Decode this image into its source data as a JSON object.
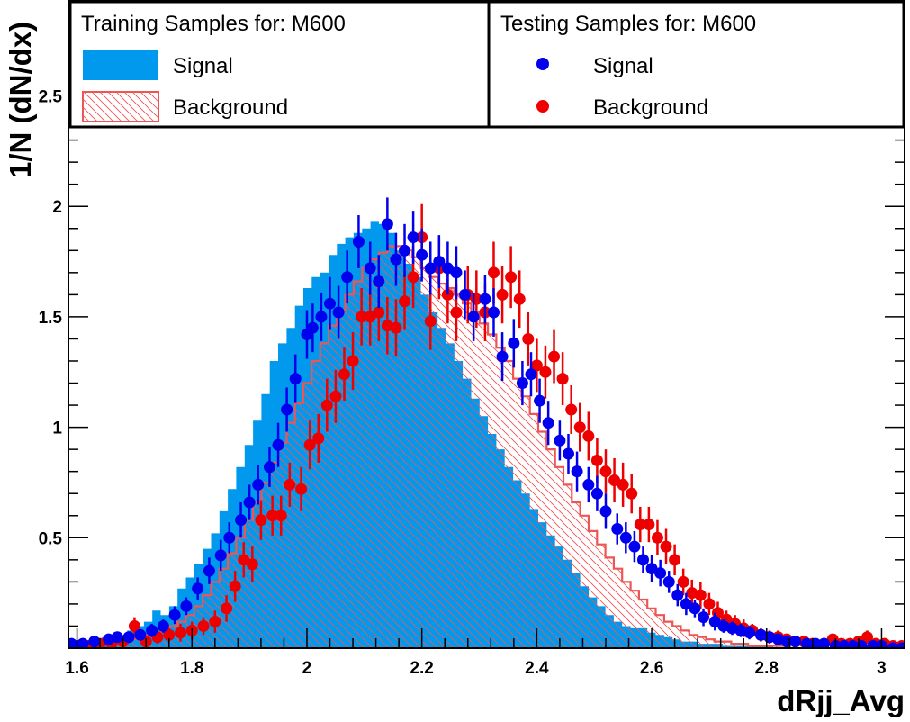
{
  "chart_data": {
    "type": "histogram",
    "xlabel": "dRjj_Avg",
    "ylabel": "1/N (dN/dx)",
    "xlim": [
      1.585,
      3.04
    ],
    "ylim": [
      0.0,
      2.93
    ],
    "x_ticks": [
      1.6,
      1.8,
      2.0,
      2.2,
      2.4,
      2.6,
      2.8,
      3.0
    ],
    "x_tick_labels": [
      "1.6",
      "1.8",
      "2",
      "2.2",
      "2.4",
      "2.6",
      "2.8",
      "3"
    ],
    "y_ticks": [
      0.5,
      1.0,
      1.5,
      2.0,
      2.5
    ],
    "y_tick_labels": [
      "0.5",
      "1",
      "1.5",
      "2",
      "2.5"
    ],
    "bin_edges_start": 1.585,
    "bin_width": 0.0146,
    "training_signal": [
      0.01,
      0.02,
      0.03,
      0.04,
      0.05,
      0.05,
      0.06,
      0.08,
      0.1,
      0.12,
      0.17,
      0.15,
      0.19,
      0.27,
      0.32,
      0.38,
      0.45,
      0.52,
      0.62,
      0.72,
      0.82,
      0.92,
      1.03,
      1.15,
      1.3,
      1.38,
      1.45,
      1.55,
      1.63,
      1.68,
      1.7,
      1.78,
      1.83,
      1.86,
      1.88,
      1.9,
      1.93,
      1.92,
      1.88,
      1.8,
      1.74,
      1.68,
      1.6,
      1.52,
      1.45,
      1.38,
      1.3,
      1.22,
      1.13,
      1.05,
      0.97,
      0.9,
      0.82,
      0.76,
      0.7,
      0.63,
      0.57,
      0.51,
      0.46,
      0.4,
      0.34,
      0.28,
      0.23,
      0.19,
      0.15,
      0.12,
      0.1,
      0.09,
      0.09,
      0.07,
      0.06,
      0.05,
      0.04,
      0.03,
      0.03,
      0.02,
      0.02,
      0.02,
      0.01,
      0.01,
      0.01,
      0.01,
      0.01,
      0.01,
      0.0,
      0.0,
      0.0,
      0.0,
      0.0,
      0.0
    ],
    "training_background": [
      0.01,
      0.01,
      0.01,
      0.02,
      0.02,
      0.03,
      0.03,
      0.04,
      0.05,
      0.06,
      0.07,
      0.08,
      0.1,
      0.12,
      0.15,
      0.19,
      0.24,
      0.3,
      0.36,
      0.43,
      0.5,
      0.58,
      0.66,
      0.75,
      0.84,
      0.93,
      1.02,
      1.11,
      1.2,
      1.3,
      1.38,
      1.46,
      1.53,
      1.6,
      1.66,
      1.72,
      1.76,
      1.79,
      1.82,
      1.82,
      1.8,
      1.77,
      1.72,
      1.68,
      1.65,
      1.63,
      1.6,
      1.56,
      1.52,
      1.47,
      1.42,
      1.36,
      1.3,
      1.22,
      1.14,
      1.06,
      0.98,
      0.9,
      0.82,
      0.74,
      0.66,
      0.6,
      0.53,
      0.47,
      0.41,
      0.36,
      0.3,
      0.26,
      0.22,
      0.18,
      0.15,
      0.12,
      0.1,
      0.08,
      0.06,
      0.05,
      0.04,
      0.03,
      0.03,
      0.02,
      0.02,
      0.01,
      0.01,
      0.01,
      0.01,
      0.01,
      0.0,
      0.0,
      0.0,
      0.0
    ],
    "testing_signal": {
      "x": [
        1.59,
        1.61,
        1.63,
        1.655,
        1.67,
        1.69,
        1.71,
        1.73,
        1.75,
        1.77,
        1.79,
        1.81,
        1.83,
        1.85,
        1.865,
        1.885,
        1.9,
        1.915,
        1.935,
        1.95,
        1.965,
        1.98,
        2.0,
        2.01,
        2.025,
        2.04,
        2.055,
        2.07,
        2.09,
        2.11,
        2.125,
        2.14,
        2.155,
        2.17,
        2.185,
        2.2,
        2.215,
        2.23,
        2.245,
        2.26,
        2.275,
        2.29,
        2.31,
        2.325,
        2.34,
        2.36,
        2.375,
        2.39,
        2.405,
        2.42,
        2.44,
        2.455,
        2.47,
        2.49,
        2.505,
        2.52,
        2.54,
        2.555,
        2.57,
        2.585,
        2.6,
        2.615,
        2.63,
        2.645,
        2.66,
        2.675,
        2.69,
        2.71,
        2.725,
        2.74,
        2.755,
        2.77,
        2.79,
        2.805,
        2.82,
        2.835,
        2.85,
        2.87,
        2.885,
        2.9,
        2.92,
        2.935,
        2.95,
        2.965,
        2.985,
        3.0,
        3.02,
        3.035
      ],
      "y": [
        0.02,
        0.02,
        0.03,
        0.04,
        0.05,
        0.05,
        0.06,
        0.08,
        0.1,
        0.15,
        0.19,
        0.27,
        0.35,
        0.42,
        0.5,
        0.58,
        0.66,
        0.74,
        0.82,
        0.92,
        1.08,
        1.22,
        1.42,
        1.45,
        1.5,
        1.56,
        1.52,
        1.68,
        1.84,
        1.72,
        1.66,
        1.92,
        1.76,
        1.8,
        1.86,
        1.78,
        1.72,
        1.75,
        1.72,
        1.7,
        1.6,
        1.5,
        1.58,
        1.52,
        1.32,
        1.38,
        1.2,
        1.24,
        1.12,
        1.02,
        0.94,
        0.88,
        0.8,
        0.74,
        0.7,
        0.62,
        0.54,
        0.5,
        0.46,
        0.4,
        0.36,
        0.34,
        0.3,
        0.24,
        0.2,
        0.18,
        0.14,
        0.12,
        0.1,
        0.09,
        0.08,
        0.07,
        0.06,
        0.05,
        0.04,
        0.03,
        0.03,
        0.02,
        0.02,
        0.02,
        0.01,
        0.01,
        0.01,
        0.01,
        0.01,
        0.01,
        0.0,
        0.0
      ],
      "err": [
        0.01,
        0.01,
        0.01,
        0.02,
        0.02,
        0.02,
        0.02,
        0.03,
        0.03,
        0.04,
        0.04,
        0.05,
        0.06,
        0.07,
        0.07,
        0.08,
        0.08,
        0.09,
        0.09,
        0.1,
        0.1,
        0.11,
        0.11,
        0.11,
        0.11,
        0.12,
        0.12,
        0.12,
        0.12,
        0.12,
        0.12,
        0.12,
        0.12,
        0.12,
        0.12,
        0.12,
        0.12,
        0.12,
        0.12,
        0.12,
        0.11,
        0.11,
        0.11,
        0.11,
        0.11,
        0.11,
        0.1,
        0.1,
        0.1,
        0.1,
        0.09,
        0.09,
        0.09,
        0.08,
        0.08,
        0.08,
        0.07,
        0.07,
        0.07,
        0.06,
        0.06,
        0.06,
        0.05,
        0.05,
        0.05,
        0.04,
        0.04,
        0.04,
        0.03,
        0.03,
        0.03,
        0.03,
        0.02,
        0.02,
        0.02,
        0.02,
        0.02,
        0.01,
        0.01,
        0.01,
        0.01,
        0.01,
        0.01,
        0.01,
        0.01,
        0.01,
        0.01,
        0.01
      ]
    },
    "testing_background": {
      "x": [
        1.6,
        1.62,
        1.64,
        1.66,
        1.68,
        1.7,
        1.72,
        1.74,
        1.76,
        1.78,
        1.8,
        1.82,
        1.84,
        1.86,
        1.875,
        1.89,
        1.905,
        1.92,
        1.94,
        1.955,
        1.97,
        1.99,
        2.005,
        2.02,
        2.035,
        2.05,
        2.065,
        2.08,
        2.095,
        2.11,
        2.125,
        2.14,
        2.155,
        2.17,
        2.185,
        2.2,
        2.215,
        2.23,
        2.245,
        2.26,
        2.28,
        2.295,
        2.31,
        2.325,
        2.34,
        2.355,
        2.37,
        2.385,
        2.4,
        2.415,
        2.43,
        2.445,
        2.46,
        2.475,
        2.49,
        2.505,
        2.52,
        2.535,
        2.55,
        2.565,
        2.58,
        2.595,
        2.61,
        2.625,
        2.64,
        2.655,
        2.67,
        2.685,
        2.7,
        2.715,
        2.73,
        2.745,
        2.76,
        2.775,
        2.79,
        2.805,
        2.82,
        2.835,
        2.85,
        2.865,
        2.88,
        2.9,
        2.915,
        2.93,
        2.945,
        2.96,
        2.975,
        2.99,
        3.005,
        3.02,
        3.035
      ],
      "y": [
        0.01,
        0.01,
        0.02,
        0.02,
        0.03,
        0.1,
        0.03,
        0.05,
        0.06,
        0.07,
        0.08,
        0.1,
        0.12,
        0.18,
        0.28,
        0.4,
        0.38,
        0.58,
        0.6,
        0.6,
        0.74,
        0.72,
        0.92,
        0.95,
        1.1,
        1.14,
        1.24,
        1.3,
        1.5,
        1.5,
        1.52,
        1.46,
        1.45,
        1.57,
        1.68,
        1.86,
        1.48,
        1.72,
        1.6,
        1.52,
        1.6,
        1.58,
        1.52,
        1.7,
        1.6,
        1.68,
        1.58,
        1.4,
        1.28,
        1.25,
        1.32,
        1.22,
        1.08,
        1.0,
        0.96,
        0.85,
        0.8,
        0.76,
        0.74,
        0.7,
        0.56,
        0.56,
        0.5,
        0.46,
        0.4,
        0.3,
        0.25,
        0.24,
        0.2,
        0.16,
        0.13,
        0.11,
        0.09,
        0.08,
        0.06,
        0.05,
        0.05,
        0.04,
        0.03,
        0.03,
        0.02,
        0.02,
        0.04,
        0.02,
        0.02,
        0.03,
        0.05,
        0.02,
        0.02,
        0.01,
        0.01
      ],
      "err": [
        0.01,
        0.01,
        0.02,
        0.02,
        0.02,
        0.04,
        0.02,
        0.03,
        0.03,
        0.04,
        0.04,
        0.04,
        0.05,
        0.06,
        0.07,
        0.08,
        0.08,
        0.09,
        0.09,
        0.09,
        0.1,
        0.1,
        0.11,
        0.11,
        0.12,
        0.12,
        0.12,
        0.13,
        0.13,
        0.13,
        0.13,
        0.13,
        0.13,
        0.13,
        0.14,
        0.15,
        0.13,
        0.14,
        0.13,
        0.13,
        0.13,
        0.13,
        0.13,
        0.14,
        0.13,
        0.14,
        0.13,
        0.12,
        0.12,
        0.12,
        0.12,
        0.12,
        0.11,
        0.11,
        0.11,
        0.1,
        0.1,
        0.1,
        0.1,
        0.09,
        0.08,
        0.08,
        0.08,
        0.08,
        0.07,
        0.06,
        0.06,
        0.06,
        0.05,
        0.05,
        0.04,
        0.04,
        0.04,
        0.03,
        0.03,
        0.03,
        0.03,
        0.02,
        0.02,
        0.02,
        0.02,
        0.02,
        0.02,
        0.02,
        0.02,
        0.02,
        0.03,
        0.02,
        0.02,
        0.01,
        0.01
      ]
    },
    "legend": {
      "training_title": "Training Samples for: M600",
      "testing_title": "Testing Samples for: M600",
      "training_entries": [
        "Signal",
        "Background"
      ],
      "testing_entries": [
        "Signal",
        "Background"
      ]
    },
    "colors": {
      "signal_fill": "#0099ee",
      "background_line": "#ee5555",
      "signal_point": "#0000ee",
      "background_point": "#ee0000"
    },
    "grid": false,
    "legend_placement": "top"
  }
}
